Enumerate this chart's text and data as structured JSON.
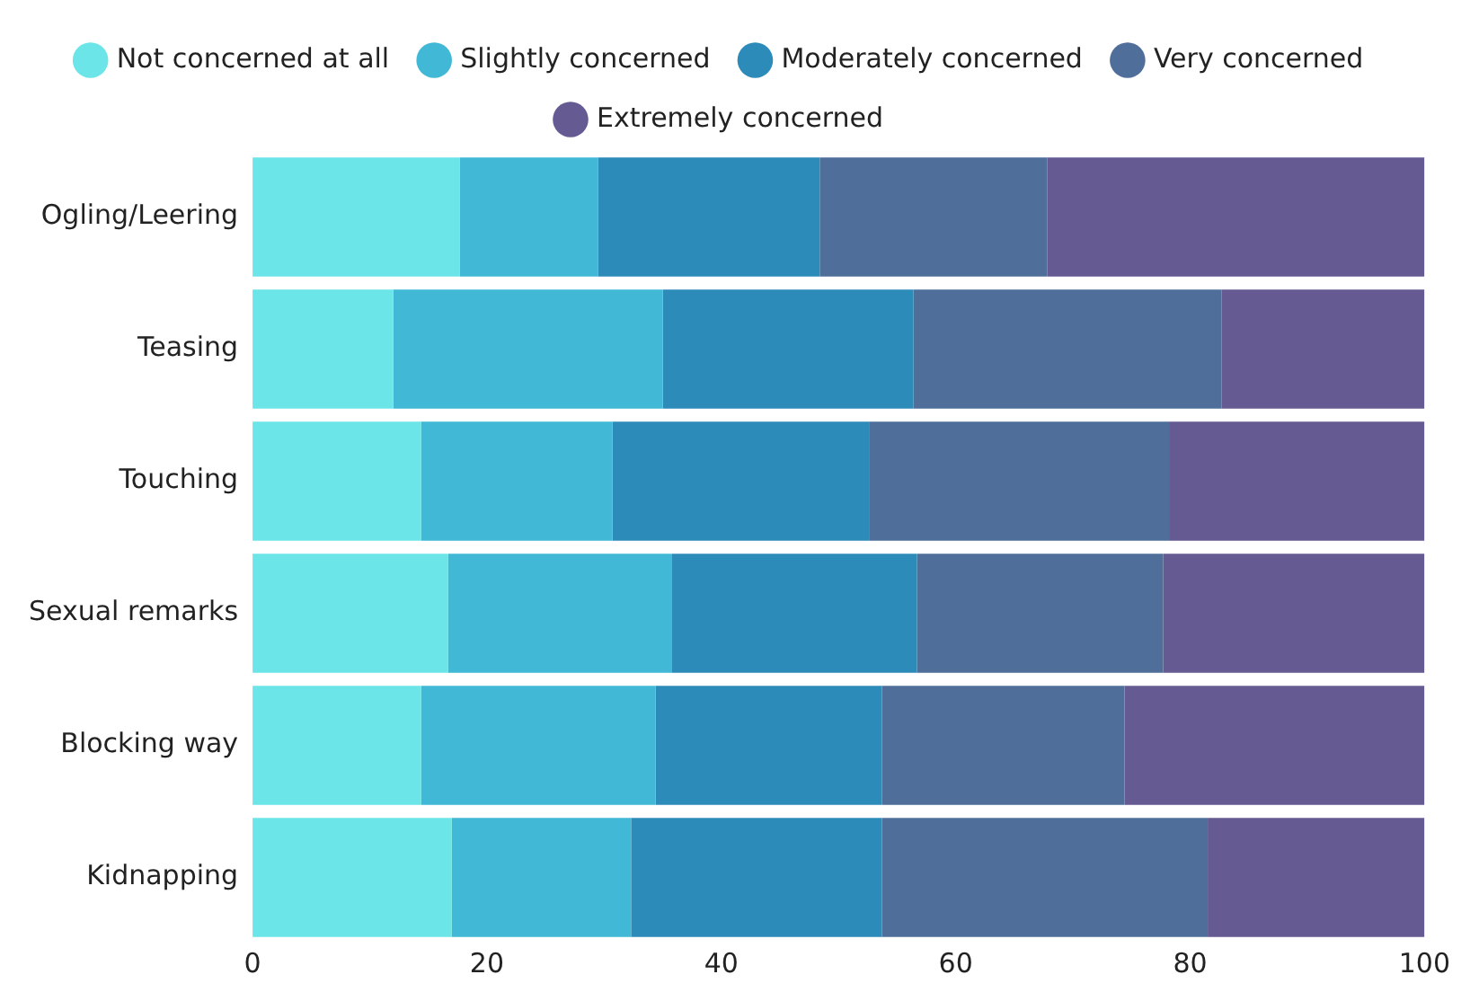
{
  "chart_data": {
    "type": "bar",
    "orientation": "horizontal",
    "stacked": true,
    "categories": [
      "Ogling/Leering",
      "Teasing",
      "Touching",
      "Sexual remarks",
      "Blocking way",
      "Kidnapping"
    ],
    "series": [
      {
        "name": "Not concerned at all",
        "color": "#6ce5e8",
        "values": [
          17.7,
          12.0,
          14.4,
          16.7,
          14.4,
          17.0
        ]
      },
      {
        "name": "Slightly concerned",
        "color": "#41b8d5",
        "values": [
          11.8,
          23.0,
          16.3,
          19.1,
          20.0,
          15.3
        ]
      },
      {
        "name": "Moderately concerned",
        "color": "#2d8bba",
        "values": [
          18.9,
          21.4,
          21.9,
          20.9,
          19.3,
          21.4
        ]
      },
      {
        "name": "Very concerned",
        "color": "#4f6f9a",
        "values": [
          19.4,
          26.3,
          25.6,
          21.0,
          20.7,
          27.8
        ]
      },
      {
        "name": "Extremely concerned",
        "color": "#655a92",
        "values": [
          32.2,
          17.3,
          21.8,
          22.3,
          25.6,
          18.5
        ]
      }
    ],
    "xlim": [
      0,
      100
    ],
    "xticks": [
      0,
      20,
      40,
      60,
      80,
      100
    ],
    "grid": false,
    "legend": "top"
  }
}
